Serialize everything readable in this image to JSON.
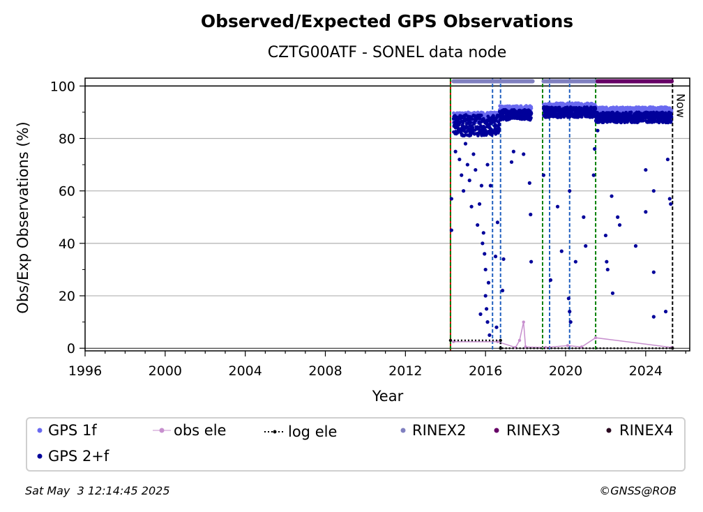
{
  "chart_data": {
    "type": "scatter",
    "title": "Observed/Expected GPS Observations",
    "subtitle": "CZTG00ATF - SONEL data node",
    "xlabel": "Year",
    "ylabel": "Obs/Exp Observations (%)",
    "xlim": [
      1996,
      2026.2
    ],
    "ylim": [
      -1,
      103
    ],
    "x_ticks": [
      1996,
      2000,
      2004,
      2008,
      2012,
      2016,
      2020,
      2024
    ],
    "y_ticks": [
      0,
      20,
      40,
      60,
      80,
      100
    ],
    "grid": "horizontal",
    "now_label": "Now",
    "now_year": 2025.34,
    "vlines": [
      {
        "x": 2014.25,
        "color": "#cc0000",
        "style": "solid"
      },
      {
        "x": 2014.25,
        "color": "#008000",
        "style": "dashed"
      },
      {
        "x": 2016.35,
        "color": "#1f5fbf",
        "style": "dashed"
      },
      {
        "x": 2016.75,
        "color": "#1f5fbf",
        "style": "dashed"
      },
      {
        "x": 2018.85,
        "color": "#008000",
        "style": "dashed"
      },
      {
        "x": 2019.2,
        "color": "#1f5fbf",
        "style": "dashed"
      },
      {
        "x": 2020.2,
        "color": "#1f5fbf",
        "style": "dashed"
      },
      {
        "x": 2021.5,
        "color": "#008000",
        "style": "dashed"
      },
      {
        "x": 2025.34,
        "color": "#000000",
        "style": "dashed"
      }
    ],
    "rinex_bars": [
      {
        "name": "RINEX2",
        "start": 2014.4,
        "end": 2018.35,
        "y": 101.8,
        "color": "#8080c0"
      },
      {
        "name": "RINEX2",
        "start": 2018.9,
        "end": 2021.6,
        "y": 101.8,
        "color": "#8080c0"
      },
      {
        "name": "RINEX3",
        "start": 2021.6,
        "end": 2025.3,
        "y": 101.8,
        "color": "#660066"
      }
    ],
    "series": [
      {
        "name": "GPS 1f",
        "color": "#6a6af0",
        "kind": "scatter",
        "segments": [
          {
            "x0": 2014.4,
            "x1": 2016.7,
            "base": 88,
            "spread": 2
          },
          {
            "x0": 2016.7,
            "x1": 2018.3,
            "base": 91,
            "spread": 1.5
          },
          {
            "x0": 2018.9,
            "x1": 2021.5,
            "base": 92,
            "spread": 1.5
          },
          {
            "x0": 2021.5,
            "x1": 2025.3,
            "base": 90.5,
            "spread": 1.5
          }
        ]
      },
      {
        "name": "GPS 2+f",
        "color": "#00009a",
        "kind": "scatter",
        "segments": [
          {
            "x0": 2014.4,
            "x1": 2016.7,
            "base": 85,
            "spread": 4
          },
          {
            "x0": 2016.7,
            "x1": 2018.3,
            "base": 89,
            "spread": 2
          },
          {
            "x0": 2018.9,
            "x1": 2021.5,
            "base": 90,
            "spread": 2
          },
          {
            "x0": 2021.5,
            "x1": 2025.3,
            "base": 88,
            "spread": 2
          }
        ],
        "outliers": [
          {
            "x": 2014.3,
            "y": 57
          },
          {
            "x": 2014.3,
            "y": 45
          },
          {
            "x": 2014.5,
            "y": 75
          },
          {
            "x": 2014.7,
            "y": 72
          },
          {
            "x": 2014.8,
            "y": 66
          },
          {
            "x": 2014.9,
            "y": 60
          },
          {
            "x": 2015.0,
            "y": 78
          },
          {
            "x": 2015.1,
            "y": 70
          },
          {
            "x": 2015.2,
            "y": 64
          },
          {
            "x": 2015.3,
            "y": 54
          },
          {
            "x": 2015.4,
            "y": 74
          },
          {
            "x": 2015.5,
            "y": 68
          },
          {
            "x": 2015.6,
            "y": 47
          },
          {
            "x": 2015.7,
            "y": 55
          },
          {
            "x": 2015.8,
            "y": 62
          },
          {
            "x": 2015.85,
            "y": 40
          },
          {
            "x": 2015.9,
            "y": 44
          },
          {
            "x": 2015.95,
            "y": 36
          },
          {
            "x": 2016.0,
            "y": 30
          },
          {
            "x": 2016.0,
            "y": 20
          },
          {
            "x": 2016.05,
            "y": 15
          },
          {
            "x": 2016.1,
            "y": 10
          },
          {
            "x": 2016.15,
            "y": 25
          },
          {
            "x": 2016.2,
            "y": 5
          },
          {
            "x": 2016.1,
            "y": 70
          },
          {
            "x": 2016.25,
            "y": 62
          },
          {
            "x": 2015.75,
            "y": 13
          },
          {
            "x": 2016.5,
            "y": 35
          },
          {
            "x": 2016.6,
            "y": 48
          },
          {
            "x": 2016.55,
            "y": 8
          },
          {
            "x": 2016.85,
            "y": 22
          },
          {
            "x": 2016.9,
            "y": 34
          },
          {
            "x": 2017.3,
            "y": 71
          },
          {
            "x": 2017.4,
            "y": 75
          },
          {
            "x": 2017.9,
            "y": 74
          },
          {
            "x": 2018.2,
            "y": 63
          },
          {
            "x": 2018.25,
            "y": 51
          },
          {
            "x": 2018.28,
            "y": 33
          },
          {
            "x": 2018.9,
            "y": 66
          },
          {
            "x": 2019.25,
            "y": 26
          },
          {
            "x": 2019.6,
            "y": 54
          },
          {
            "x": 2019.8,
            "y": 37
          },
          {
            "x": 2020.15,
            "y": 19
          },
          {
            "x": 2020.2,
            "y": 14
          },
          {
            "x": 2020.25,
            "y": 10
          },
          {
            "x": 2020.2,
            "y": 60
          },
          {
            "x": 2020.5,
            "y": 33
          },
          {
            "x": 2020.9,
            "y": 50
          },
          {
            "x": 2021.0,
            "y": 39
          },
          {
            "x": 2021.4,
            "y": 66
          },
          {
            "x": 2021.45,
            "y": 76
          },
          {
            "x": 2021.6,
            "y": 83
          },
          {
            "x": 2022.0,
            "y": 43
          },
          {
            "x": 2022.05,
            "y": 33
          },
          {
            "x": 2022.1,
            "y": 30
          },
          {
            "x": 2022.3,
            "y": 58
          },
          {
            "x": 2022.35,
            "y": 21
          },
          {
            "x": 2022.6,
            "y": 50
          },
          {
            "x": 2022.7,
            "y": 47
          },
          {
            "x": 2023.5,
            "y": 39
          },
          {
            "x": 2024.0,
            "y": 68
          },
          {
            "x": 2024.0,
            "y": 52
          },
          {
            "x": 2024.4,
            "y": 60
          },
          {
            "x": 2024.4,
            "y": 29
          },
          {
            "x": 2024.4,
            "y": 12
          },
          {
            "x": 2025.0,
            "y": 14
          },
          {
            "x": 2025.2,
            "y": 57
          },
          {
            "x": 2025.25,
            "y": 55
          },
          {
            "x": 2025.1,
            "y": 72
          }
        ]
      },
      {
        "name": "obs ele",
        "color": "#c78fce",
        "kind": "line",
        "points": [
          {
            "x": 2014.4,
            "y": 2.5
          },
          {
            "x": 2016.6,
            "y": 2.5
          },
          {
            "x": 2017.5,
            "y": 0.3
          },
          {
            "x": 2017.7,
            "y": 3
          },
          {
            "x": 2017.9,
            "y": 10
          },
          {
            "x": 2018.0,
            "y": 0.5
          },
          {
            "x": 2019.0,
            "y": 0.3
          },
          {
            "x": 2020.1,
            "y": 1
          },
          {
            "x": 2020.8,
            "y": 0.5
          },
          {
            "x": 2021.5,
            "y": 4
          },
          {
            "x": 2025.3,
            "y": 0.3
          }
        ]
      },
      {
        "name": "log ele",
        "color": "#000000",
        "kind": "line",
        "points": [
          {
            "x": 2014.25,
            "y": 3
          },
          {
            "x": 2016.75,
            "y": 3
          },
          {
            "x": 2016.75,
            "y": 0
          },
          {
            "x": 2025.34,
            "y": 0
          }
        ]
      }
    ],
    "legend": [
      {
        "name": "GPS 1f",
        "color": "#6a6af0",
        "marker": "dot"
      },
      {
        "name": "obs ele",
        "color": "#c78fce",
        "marker": "line-dot"
      },
      {
        "name": "log ele",
        "color": "#000000",
        "marker": "dotted"
      },
      {
        "name": "RINEX2",
        "color": "#8080c0",
        "marker": "dot"
      },
      {
        "name": "RINEX3",
        "color": "#660066",
        "marker": "dot"
      },
      {
        "name": "RINEX4",
        "color": "#2a0a20",
        "marker": "dot"
      },
      {
        "name": "GPS 2+f",
        "color": "#00009a",
        "marker": "dot"
      }
    ],
    "legend_placement": "bottom"
  },
  "footer": {
    "timestamp": "Sat May  3 12:14:45 2025",
    "credit": "©GNSS@ROB"
  }
}
